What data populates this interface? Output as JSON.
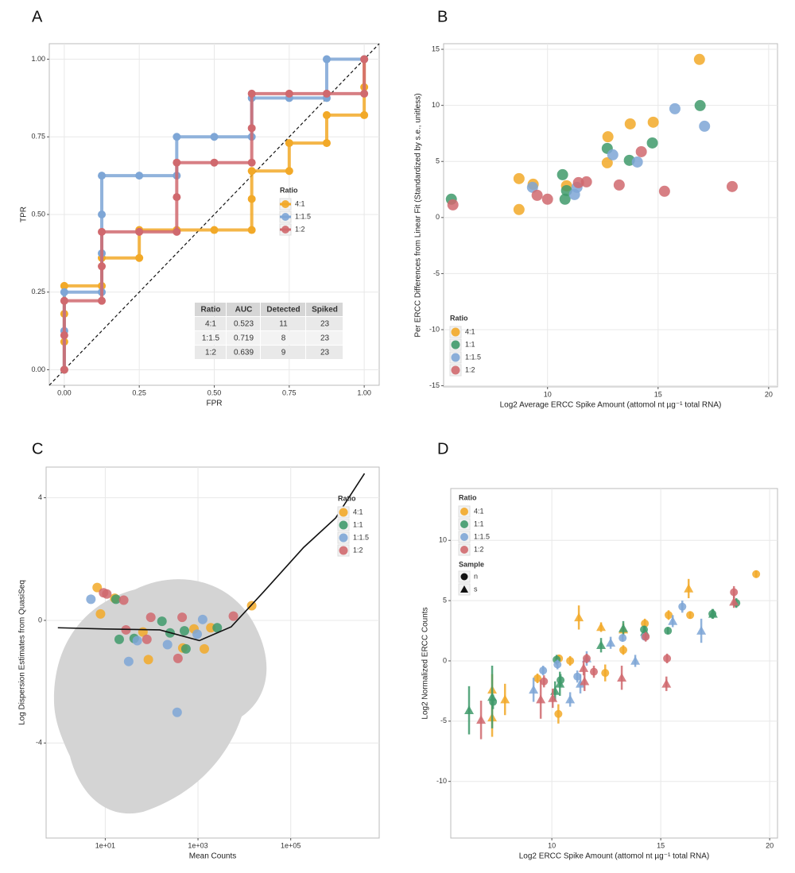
{
  "chart_data": [
    {
      "type": "line",
      "panel": "A",
      "xlabel": "FPR",
      "ylabel": "TPR",
      "xlim": [
        -0.05,
        1.05
      ],
      "ylim": [
        -0.05,
        1.05
      ],
      "xticks": [
        {
          "value": 0,
          "label": "0.00"
        },
        {
          "value": 0.25,
          "label": "0.25"
        },
        {
          "value": 0.5,
          "label": "0.50"
        },
        {
          "value": 0.75,
          "label": "0.75"
        },
        {
          "value": 1,
          "label": "1.00"
        }
      ],
      "yticks": [
        {
          "value": 0,
          "label": "0.00"
        },
        {
          "value": 0.25,
          "label": "0.25"
        },
        {
          "value": 0.5,
          "label": "0.50"
        },
        {
          "value": 0.75,
          "label": "0.75"
        },
        {
          "value": 1,
          "label": "1.00"
        }
      ],
      "grid": true,
      "diagonal": true,
      "legend": "center-right",
      "legend_title": "Ratio",
      "series": [
        {
          "name": "4:1",
          "color": "#f2a928",
          "x": [
            0,
            0,
            0,
            0,
            0.125,
            0.125,
            0.25,
            0.25,
            0.375,
            0.5,
            0.625,
            0.625,
            0.625,
            0.75,
            0.75,
            0.875,
            0.875,
            1,
            1,
            1
          ],
          "values": [
            0,
            0.09,
            0.18,
            0.27,
            0.27,
            0.36,
            0.36,
            0.45,
            0.45,
            0.45,
            0.45,
            0.55,
            0.64,
            0.64,
            0.73,
            0.73,
            0.82,
            0.82,
            0.91,
            1
          ]
        },
        {
          "name": "1:1.5",
          "color": "#7ea6d6",
          "x": [
            0,
            0,
            0,
            0.125,
            0.125,
            0.125,
            0.125,
            0.25,
            0.375,
            0.375,
            0.5,
            0.625,
            0.625,
            0.75,
            0.875,
            0.875,
            1
          ],
          "values": [
            0,
            0.125,
            0.25,
            0.25,
            0.375,
            0.5,
            0.625,
            0.625,
            0.625,
            0.75,
            0.75,
            0.75,
            0.875,
            0.875,
            0.875,
            1,
            1
          ]
        },
        {
          "name": "1:2",
          "color": "#d0696e",
          "x": [
            0,
            0,
            0,
            0.125,
            0.125,
            0.125,
            0.25,
            0.375,
            0.375,
            0.375,
            0.5,
            0.625,
            0.625,
            0.625,
            0.75,
            0.875,
            1,
            1
          ],
          "values": [
            0,
            0.111,
            0.222,
            0.222,
            0.333,
            0.444,
            0.444,
            0.444,
            0.556,
            0.667,
            0.667,
            0.667,
            0.778,
            0.889,
            0.889,
            0.889,
            0.889,
            1
          ]
        }
      ],
      "table": {
        "columns": [
          "Ratio",
          "AUC",
          "Detected",
          "Spiked"
        ],
        "rows": [
          [
            "4:1",
            0.523,
            11,
            23
          ],
          [
            "1:1.5",
            0.719,
            8,
            23
          ],
          [
            "1:2",
            0.639,
            9,
            23
          ]
        ]
      }
    },
    {
      "type": "scatter",
      "panel": "B",
      "xlabel": "Log2 Average ERCC Spike Amount (attomol nt µg⁻¹ total RNA)",
      "ylabel": "Per ERCC Differences from Linear Fit (Standardized by s.e., unitless)",
      "xlim": [
        5.3,
        20.4
      ],
      "ylim": [
        -15.1,
        15.5
      ],
      "xticks": [
        10,
        15,
        20
      ],
      "yticks": [
        -15,
        -10,
        -5,
        0,
        5,
        10,
        15
      ],
      "grid": true,
      "legend": "bottom-left",
      "legend_title": "Ratio",
      "series": [
        {
          "name": "4:1",
          "color": "#f2a928",
          "x": [
            12.73,
            13.74,
            14.78,
            16.87,
            8.71,
            8.71,
            9.35,
            10.86,
            12.7
          ],
          "values": [
            7.2,
            8.35,
            8.5,
            14.1,
            3.47,
            0.71,
            2.97,
            2.83,
            4.88
          ]
        },
        {
          "name": "1:1",
          "color": "#3f9a6b",
          "x": [
            5.65,
            10.68,
            10.79,
            10.86,
            12.7,
            13.7,
            14.74,
            16.9
          ],
          "values": [
            1.63,
            3.82,
            1.63,
            2.4,
            6.16,
            5.1,
            6.65,
            9.98
          ]
        },
        {
          "name": "1:1.5",
          "color": "#7ea6d6",
          "x": [
            9.32,
            11.22,
            11.33,
            12.95,
            14.06,
            15.76,
            17.1
          ],
          "values": [
            2.69,
            2.05,
            2.69,
            5.59,
            4.95,
            9.7,
            8.14
          ]
        },
        {
          "name": "1:2",
          "color": "#d0696e",
          "x": [
            5.72,
            9.53,
            10.0,
            11.4,
            11.76,
            13.24,
            14.24,
            15.29,
            18.35
          ],
          "values": [
            1.13,
            1.98,
            1.63,
            3.11,
            3.18,
            2.9,
            5.87,
            2.34,
            2.76
          ]
        }
      ]
    },
    {
      "type": "scatter",
      "panel": "C",
      "xlabel": "Mean Counts",
      "ylabel": "Log Dispersion Estimates from QuasiSeq",
      "xlim": [
        0.53,
        8100000
      ],
      "ylim": [
        -7.1,
        5.0
      ],
      "log_x": true,
      "xticks": [
        {
          "value": 10,
          "label": "1e+01"
        },
        {
          "value": 1000,
          "label": "1e+03"
        },
        {
          "value": 100000,
          "label": "1e+05"
        }
      ],
      "yticks": [
        -4,
        0,
        4
      ],
      "grid": true,
      "legend": "top-right",
      "legend_title": "Ratio",
      "series": [
        {
          "name": "4:1",
          "color": "#f2a928",
          "x": [
            6.7,
            7.9,
            16,
            65,
            85,
            470,
            820,
            1370,
            1890,
            14400
          ],
          "values": [
            1.07,
            0.21,
            0.72,
            -0.38,
            -1.28,
            -0.9,
            -0.28,
            -0.93,
            -0.24,
            0.48
          ]
        },
        {
          "name": "1:1",
          "color": "#3f9a6b",
          "x": [
            17,
            20,
            42,
            167,
            250,
            550,
            510,
            2600
          ],
          "values": [
            0.69,
            -0.62,
            -0.59,
            -0.03,
            -0.41,
            -0.93,
            -0.34,
            -0.24
          ]
        },
        {
          "name": "1:1.5",
          "color": "#7ea6d6",
          "x": [
            4.9,
            32,
            49,
            220,
            355,
            1260,
            960
          ],
          "values": [
            0.69,
            -1.34,
            -0.66,
            -0.79,
            -3.0,
            0.03,
            -0.45
          ]
        },
        {
          "name": "1:2",
          "color": "#d0696e",
          "x": [
            9.2,
            10.8,
            25,
            28,
            79,
            96,
            370,
            455,
            5800
          ],
          "values": [
            0.9,
            0.86,
            0.66,
            -0.31,
            -0.62,
            0.1,
            -1.24,
            0.1,
            0.14
          ]
        }
      ],
      "fit": {
        "x": [
          0.95,
          10,
          150,
          1070,
          5200,
          26000,
          190000,
          930000,
          3900000
        ],
        "values": [
          -0.24,
          -0.28,
          -0.31,
          -0.66,
          -0.21,
          0.93,
          2.38,
          3.34,
          4.79
        ]
      }
    },
    {
      "type": "scatter",
      "panel": "D",
      "xlabel": "Log2 ERCC Spike Amount (attomol nt µg⁻¹ total RNA)",
      "ylabel": "Log2 Normalized ERCC Counts",
      "xlim": [
        5.36,
        20.36
      ],
      "ylim": [
        -14.7,
        14.3
      ],
      "xticks": [
        10,
        15,
        20
      ],
      "yticks": [
        -10,
        -5,
        0,
        5,
        10
      ],
      "grid": true,
      "legend": "top-left",
      "legend_title": "Ratio",
      "sample_legend": {
        "title": "Sample",
        "labels": [
          "n",
          "s"
        ]
      },
      "series": [
        {
          "name": "4:1",
          "color": "#f2a928",
          "x": [
            10.33,
            10.84,
            12.45,
            13.28,
            14.27,
            15.36,
            16.35,
            19.38,
            10.3,
            9.34,
            7.26,
            7.26,
            7.85,
            11.24,
            12.26,
            13.28,
            16.28
          ],
          "values": [
            0.2,
            0,
            -1.0,
            0.9,
            3.1,
            3.8,
            3.8,
            7.2,
            -4.4,
            -1.45,
            -2.4,
            -4.7,
            -3.2,
            3.6,
            2.8,
            2.6,
            6.0
          ],
          "errors": [
            0.3,
            0.4,
            0.7,
            0.4,
            0.4,
            0.4,
            0.3,
            0.3,
            0.8,
            0.4,
            1.3,
            1.6,
            1.3,
            1.0,
            0.4,
            0.5,
            0.8
          ],
          "sample": [
            "n",
            "n",
            "n",
            "n",
            "n",
            "n",
            "n",
            "n",
            "n",
            "n",
            "s",
            "s",
            "s",
            "s",
            "s",
            "s",
            "s"
          ]
        },
        {
          "name": "1:1",
          "color": "#3f9a6b",
          "x": [
            10.22,
            14.23,
            15.33,
            17.37,
            18.47,
            7.3,
            10.4,
            6.2,
            7.26,
            10.15,
            10.37,
            12.26,
            13.28,
            14.27,
            17.4
          ],
          "values": [
            0.1,
            2.6,
            2.5,
            3.9,
            4.8,
            -3.4,
            -1.6,
            -4.1,
            -3.0,
            -2.5,
            -1.9,
            1.3,
            2.7,
            2.4,
            3.9
          ],
          "errors": [
            0.4,
            0.3,
            0.3,
            0.4,
            0.4,
            0.6,
            0.5,
            2.0,
            2.6,
            0.8,
            1.0,
            0.6,
            0.6,
            0.5,
            0.4
          ],
          "sample": [
            "n",
            "n",
            "n",
            "n",
            "n",
            "n",
            "n",
            "s",
            "s",
            "s",
            "s",
            "s",
            "s",
            "s",
            "s"
          ]
        },
        {
          "name": "1:1.5",
          "color": "#7ea6d6",
          "x": [
            9.6,
            10.26,
            11.17,
            13.25,
            14.27,
            15.99,
            9.16,
            10.84,
            11.6,
            11.31,
            12.7,
            13.83,
            15.55,
            16.86
          ],
          "values": [
            -0.8,
            -0.3,
            -1.3,
            1.9,
            2.0,
            4.5,
            -2.4,
            -3.2,
            0.2,
            -1.9,
            1.5,
            0,
            3.3,
            2.5
          ],
          "errors": [
            0.4,
            0.4,
            0.5,
            0.3,
            0.3,
            0.5,
            1.0,
            0.6,
            0.6,
            0.8,
            0.5,
            0.5,
            0.5,
            1.0
          ],
          "sample": [
            "n",
            "n",
            "n",
            "n",
            "n",
            "n",
            "s",
            "s",
            "s",
            "s",
            "s",
            "s",
            "s",
            "s"
          ]
        },
        {
          "name": "1:2",
          "color": "#d0696e",
          "x": [
            9.64,
            11.6,
            11.93,
            14.31,
            15.29,
            18.36,
            6.75,
            9.49,
            10.04,
            11.5,
            13.21,
            15.26,
            18.36,
            11.46
          ],
          "values": [
            -1.7,
            0.2,
            -0.9,
            2.0,
            0.2,
            5.7,
            -4.9,
            -3.2,
            -3.1,
            -1.7,
            -1.4,
            -1.9,
            4.9,
            -0.6
          ],
          "errors": [
            0.5,
            0.4,
            0.5,
            0.4,
            0.4,
            0.5,
            1.6,
            1.6,
            0.8,
            0.8,
            1.0,
            0.6,
            0.5,
            0.6
          ],
          "sample": [
            "n",
            "n",
            "n",
            "n",
            "n",
            "n",
            "s",
            "s",
            "s",
            "s",
            "s",
            "s",
            "s",
            "s"
          ]
        }
      ]
    }
  ]
}
